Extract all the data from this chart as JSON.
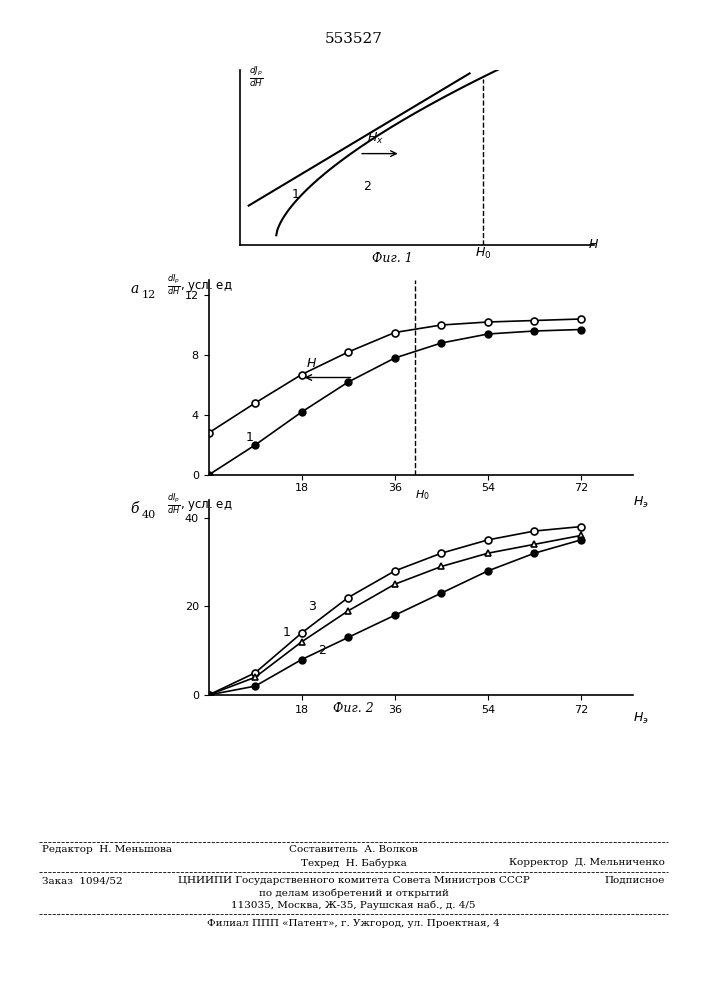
{
  "patent_number": "553527",
  "fig1_caption": "Фиг. 1",
  "fig2_caption": "Фиг. 2",
  "label_a": "а",
  "label_b": "б",
  "footer_left": "Редактор  Н. Меньшова",
  "footer_center_top": "Составитель  А. Волков",
  "footer_center_mid": "Техред  Н. Бабурка",
  "footer_right": "Корректор  Д. Мельниченко",
  "footer_order": "Заказ  1094/52",
  "footer_podp": "Подписное",
  "footer_org": "ЦНИИПИ Государственного комитета Совета Министров СССР",
  "footer_dep": "по делам изобретений и открытий",
  "footer_addr": "113035, Москва, Ж-35, Раушская наб., д. 4/5",
  "footer_filial": "Филиал ППП «Патент», г. Ужгород, ул. Проектная, 4",
  "fig2a_oc_x": [
    0,
    9,
    18,
    27,
    36,
    45,
    54,
    63,
    72
  ],
  "fig2a_oc_y": [
    2.8,
    4.8,
    6.7,
    8.2,
    9.5,
    10.0,
    10.2,
    10.3,
    10.4
  ],
  "fig2a_fc_x": [
    0,
    9,
    18,
    27,
    36,
    45,
    54,
    63,
    72
  ],
  "fig2a_fc_y": [
    0,
    2.0,
    4.2,
    6.2,
    7.8,
    8.8,
    9.4,
    9.6,
    9.7
  ],
  "fig2b_oc_x": [
    0,
    9,
    18,
    27,
    36,
    45,
    54,
    63,
    72
  ],
  "fig2b_oc_y": [
    0,
    5,
    14,
    22,
    28,
    32,
    35,
    37,
    38
  ],
  "fig2b_tri_x": [
    0,
    9,
    18,
    27,
    36,
    45,
    54,
    63,
    72
  ],
  "fig2b_tri_y": [
    0,
    4,
    12,
    19,
    25,
    29,
    32,
    34,
    36
  ],
  "fig2b_fc_x": [
    0,
    9,
    18,
    27,
    36,
    45,
    54,
    63,
    72
  ],
  "fig2b_fc_y": [
    0,
    2,
    8,
    13,
    18,
    23,
    28,
    32,
    35
  ]
}
